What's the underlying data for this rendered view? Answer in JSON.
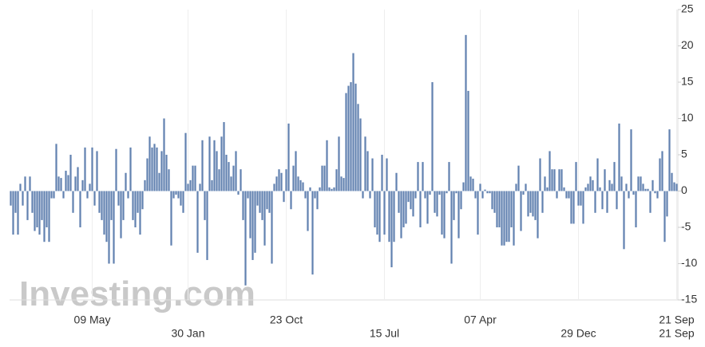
{
  "chart_data": {
    "type": "bar",
    "watermark": "Investing.com",
    "color": "#6282b0",
    "ylim": [
      -15,
      25
    ],
    "yticks": [
      -15,
      -10,
      -5,
      0,
      5,
      10,
      15,
      20,
      25
    ],
    "categories": [
      null,
      null,
      null,
      null,
      null,
      null,
      null,
      null,
      null,
      null,
      null,
      null,
      null,
      null,
      null,
      null,
      null,
      null,
      null,
      null,
      null,
      null,
      null,
      null,
      null,
      null,
      null,
      null,
      null,
      null,
      null,
      null,
      null,
      null,
      "09 May",
      null,
      null,
      null,
      null,
      null,
      null,
      null,
      null,
      null,
      null,
      null,
      null,
      null,
      null,
      null,
      null,
      null,
      null,
      null,
      null,
      null,
      null,
      null,
      null,
      null,
      null,
      null,
      null,
      null,
      null,
      null,
      null,
      null,
      null,
      null,
      null,
      null,
      null,
      null,
      "30 Jan",
      null,
      null,
      null,
      null,
      null,
      null,
      null,
      null,
      null,
      null,
      null,
      null,
      null,
      null,
      null,
      null,
      null,
      null,
      null,
      null,
      null,
      null,
      null,
      null,
      null,
      null,
      null,
      null,
      null,
      null,
      null,
      null,
      null,
      null,
      null,
      null,
      null,
      null,
      null,
      null,
      "23 Oct",
      null,
      null,
      null,
      null,
      null,
      null,
      null,
      null,
      null,
      null,
      null,
      null,
      null,
      null,
      null,
      null,
      null,
      null,
      null,
      null,
      null,
      null,
      null,
      null,
      null,
      null,
      null,
      null,
      null,
      null,
      null,
      null,
      null,
      null,
      null,
      null,
      null,
      null,
      null,
      null,
      "15 Jul",
      null,
      null,
      null,
      null,
      null,
      null,
      null,
      null,
      null,
      null,
      null,
      null,
      null,
      null,
      null,
      null,
      null,
      null,
      null,
      null,
      null,
      null,
      null,
      null,
      null,
      null,
      null,
      null,
      null,
      null,
      null,
      null,
      null,
      null,
      null,
      null,
      null,
      null,
      null,
      "07 Apr",
      null,
      null,
      null,
      null,
      null,
      null,
      null,
      null,
      null,
      null,
      null,
      null,
      null,
      null,
      null,
      null,
      null,
      null,
      null,
      null,
      null,
      null,
      null,
      null,
      null,
      null,
      null,
      null,
      null,
      null,
      null,
      null,
      null,
      null,
      null,
      null,
      null,
      null,
      null,
      null,
      "29 Dec",
      null,
      null,
      null,
      null,
      null,
      null,
      null,
      null,
      null,
      null,
      null,
      null,
      null,
      null,
      null,
      null,
      null,
      null,
      null,
      null,
      null,
      null,
      null,
      null,
      null,
      null,
      null,
      null,
      null,
      null,
      null,
      null,
      null,
      null,
      null,
      null,
      null,
      null,
      null,
      null,
      "21 Sep"
    ],
    "x_end_label": "21 Sep",
    "values": [
      -2,
      -6,
      -3,
      -6,
      1,
      -2,
      2,
      -4,
      2,
      -3,
      -5.5,
      -5,
      -6,
      -4,
      -7,
      -5,
      -7,
      -1,
      -1,
      6.5,
      2,
      1.8,
      -1,
      2.8,
      2.2,
      5,
      -3,
      2,
      3.3,
      -5,
      1.5,
      6,
      -1,
      1,
      6,
      -2,
      5.5,
      -3,
      -4,
      -6,
      -7,
      -10,
      -4,
      -10,
      5.8,
      -2,
      -6.5,
      -4,
      2.5,
      -1,
      6,
      -4,
      -5,
      -3,
      -6,
      -2.5,
      1.5,
      4.5,
      7.5,
      6,
      6.5,
      6,
      2.5,
      5.5,
      10,
      5,
      3,
      -7.5,
      -1,
      -0.5,
      -1,
      -2,
      -3,
      8,
      1,
      1.5,
      3.5,
      3.5,
      -8.5,
      1,
      7,
      -4,
      -9.5,
      7.5,
      1.5,
      7,
      5.5,
      3,
      7.5,
      9.5,
      5,
      4,
      2,
      3.5,
      5.5,
      -0.5,
      3,
      -4,
      -13,
      -1,
      -6.5,
      -9.5,
      -8.5,
      -2,
      -3,
      -4,
      -7.5,
      -2.5,
      -3,
      -10,
      1,
      2,
      3,
      2.5,
      -1.5,
      3,
      9.3,
      -2.5,
      3.5,
      5.5,
      2,
      1.5,
      1.2,
      -1,
      -5.5,
      0.5,
      -11.5,
      -1,
      -2.5,
      0.5,
      3.5,
      3.5,
      7,
      0.5,
      0.3,
      0.5,
      3,
      7.5,
      2,
      1.8,
      13.5,
      14.5,
      15,
      19,
      14.8,
      12,
      10,
      -1,
      7.5,
      5.5,
      -1,
      4.5,
      -5,
      -6,
      -7,
      5,
      -6,
      4.5,
      -7,
      -10.5,
      -7,
      2.5,
      -3,
      -6.5,
      -5,
      -4.5,
      -1.5,
      -2.5,
      -3.5,
      -1,
      4,
      -5,
      4,
      -1,
      -4.5,
      -0.5,
      15,
      -3,
      -3.5,
      -0.5,
      -6,
      -6.5,
      -0.3,
      4,
      -10,
      -4,
      -0.3,
      -6.5,
      -2.5,
      1.2,
      21.5,
      13.8,
      2,
      1.7,
      -1,
      -6,
      1,
      -1,
      0.2,
      -0.3,
      -0.3,
      -2.5,
      -3,
      -5,
      -5,
      -7.5,
      -7.5,
      -7,
      -7,
      -5,
      -7.5,
      1,
      3.5,
      -5.5,
      -0.5,
      1,
      -3.5,
      -3,
      -3.5,
      -4,
      -6.5,
      4.5,
      -3,
      2,
      0.5,
      5.5,
      3,
      3,
      -1,
      3,
      3,
      0.5,
      -1,
      -1,
      -4.5,
      -4.5,
      4,
      -2,
      -2,
      -4.5,
      0.5,
      1,
      2,
      1.5,
      -3,
      4.5,
      0.5,
      -2.5,
      3,
      -3,
      1.5,
      1,
      4,
      -2.5,
      9.3,
      2,
      -8,
      1,
      -1,
      8.5,
      -0.5,
      -5,
      2,
      2,
      1,
      0.3,
      0.3,
      -3,
      1.5,
      -0.3,
      -1,
      4.5,
      5.5,
      -7,
      -3.5,
      8.5,
      2.5,
      1.2,
      1
    ]
  }
}
